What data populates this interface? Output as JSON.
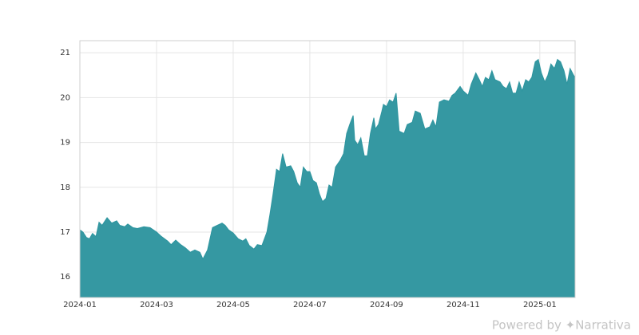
{
  "chart_data": {
    "type": "area",
    "color": "#2e959f",
    "grid": true,
    "footer": "Powered by ✦Narrativa",
    "x": [
      0,
      0.08,
      0.17,
      0.25,
      0.33,
      0.42,
      0.5,
      0.58,
      0.71,
      0.83,
      0.96,
      1.04,
      1.17,
      1.25,
      1.38,
      1.5,
      1.67,
      1.83,
      2.0,
      2.13,
      2.29,
      2.38,
      2.5,
      2.63,
      2.75,
      2.88,
      3.0,
      3.13,
      3.21,
      3.33,
      3.46,
      3.58,
      3.71,
      3.79,
      3.88,
      4.0,
      4.13,
      4.25,
      4.33,
      4.42,
      4.54,
      4.63,
      4.75,
      4.88,
      4.96,
      5.04,
      5.13,
      5.21,
      5.29,
      5.38,
      5.5,
      5.58,
      5.67,
      5.75,
      5.83,
      5.92,
      6.0,
      6.08,
      6.17,
      6.25,
      6.33,
      6.42,
      6.5,
      6.58,
      6.67,
      6.79,
      6.88,
      6.96,
      7.04,
      7.13,
      7.17,
      7.25,
      7.33,
      7.42,
      7.5,
      7.58,
      7.67,
      7.71,
      7.79,
      7.88,
      7.92,
      8.0,
      8.08,
      8.17,
      8.25,
      8.33,
      8.46,
      8.54,
      8.67,
      8.75,
      8.88,
      9.0,
      9.13,
      9.21,
      9.29,
      9.38,
      9.5,
      9.63,
      9.71,
      9.79,
      9.92,
      10.0,
      10.13,
      10.21,
      10.33,
      10.42,
      10.5,
      10.58,
      10.67,
      10.75,
      10.83,
      10.96,
      11.04,
      11.13,
      11.21,
      11.29,
      11.38,
      11.46,
      11.54,
      11.63,
      11.71,
      11.79,
      11.88,
      11.96,
      12.04,
      12.13,
      12.21,
      12.29,
      12.38,
      12.46,
      12.54,
      12.63,
      12.71,
      12.79,
      12.88,
      12.92
    ],
    "y": [
      17.05,
      17.0,
      16.88,
      16.85,
      16.97,
      16.9,
      17.22,
      17.15,
      17.32,
      17.2,
      17.25,
      17.15,
      17.12,
      17.18,
      17.1,
      17.08,
      17.12,
      17.1,
      17.0,
      16.9,
      16.8,
      16.72,
      16.82,
      16.72,
      16.65,
      16.55,
      16.6,
      16.55,
      16.4,
      16.6,
      17.1,
      17.15,
      17.2,
      17.15,
      17.05,
      16.98,
      16.85,
      16.8,
      16.85,
      16.7,
      16.62,
      16.72,
      16.7,
      17.0,
      17.4,
      17.85,
      18.4,
      18.35,
      18.75,
      18.45,
      18.48,
      18.35,
      18.1,
      18.0,
      18.45,
      18.35,
      18.35,
      18.15,
      18.1,
      17.85,
      17.68,
      17.75,
      18.05,
      18.0,
      18.45,
      18.6,
      18.75,
      19.2,
      19.4,
      19.6,
      19.05,
      18.95,
      19.1,
      18.7,
      18.7,
      19.2,
      19.55,
      19.3,
      19.4,
      19.7,
      19.85,
      19.8,
      19.95,
      19.9,
      20.1,
      19.25,
      19.2,
      19.4,
      19.45,
      19.7,
      19.65,
      19.3,
      19.35,
      19.5,
      19.35,
      19.9,
      19.95,
      19.92,
      20.05,
      20.1,
      20.25,
      20.15,
      20.05,
      20.3,
      20.55,
      20.4,
      20.25,
      20.45,
      20.4,
      20.6,
      20.4,
      20.35,
      20.25,
      20.2,
      20.35,
      20.1,
      20.1,
      20.35,
      20.15,
      20.4,
      20.35,
      20.45,
      20.8,
      20.85,
      20.55,
      20.35,
      20.5,
      20.75,
      20.65,
      20.85,
      20.8,
      20.6,
      20.3,
      20.65,
      20.5,
      20.45
    ],
    "xlim": [
      0,
      12.92
    ],
    "ylim": [
      15.54,
      21.27
    ],
    "xticks": [
      {
        "value": 0,
        "label": "2024-01"
      },
      {
        "value": 2,
        "label": "2024-03"
      },
      {
        "value": 4,
        "label": "2024-05"
      },
      {
        "value": 6,
        "label": "2024-07"
      },
      {
        "value": 8,
        "label": "2024-09"
      },
      {
        "value": 10,
        "label": "2024-11"
      },
      {
        "value": 12,
        "label": "2025-01"
      }
    ],
    "yticks": [
      16,
      17,
      18,
      19,
      20,
      21
    ]
  }
}
